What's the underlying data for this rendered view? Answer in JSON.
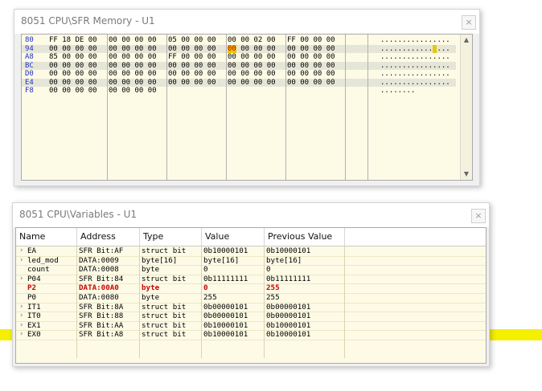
{
  "memory_window": {
    "title": "8051 CPU\\SFR Memory - U1",
    "close": "×",
    "rows": [
      {
        "addr": "80",
        "groups": [
          "FF 18 DE 00",
          "00 00 00 00",
          "05 00 00 00",
          "00 00 02 00",
          "FF 00 00 00"
        ],
        "ascii": "................"
      },
      {
        "addr": "94",
        "groups": [
          "00 00 00 00",
          "00 00 00 00",
          "00 00 00 00",
          "00 00 00 00",
          "00 00 00 00"
        ],
        "ascii": "............ ..."
      },
      {
        "addr": "A8",
        "groups": [
          "85 00 00 00",
          "00 00 00 00",
          "FF 00 00 00",
          "00 00 00 00",
          "00 00 00 00"
        ],
        "ascii": "................"
      },
      {
        "addr": "BC",
        "groups": [
          "00 00 00 00",
          "00 00 00 00",
          "00 00 00 00",
          "00 00 00 00",
          "00 00 00 00"
        ],
        "ascii": "................"
      },
      {
        "addr": "D0",
        "groups": [
          "00 00 00 00",
          "00 00 00 00",
          "00 00 00 00",
          "00 00 00 00",
          "00 00 00 00"
        ],
        "ascii": "................"
      },
      {
        "addr": "E4",
        "groups": [
          "00 00 00 00",
          "00 00 00 00",
          "00 00 00 00",
          "00 00 00 00",
          "00 00 00 00"
        ],
        "ascii": "................"
      },
      {
        "addr": "F8",
        "groups": [
          "00 00 00 00",
          "00 00 00 00",
          "",
          "",
          ""
        ],
        "ascii": "........"
      }
    ],
    "highlight": {
      "row": 1,
      "group": 3,
      "byte": 0,
      "value": "00"
    }
  },
  "variables_window": {
    "title": "8051 CPU\\Variables - U1",
    "close": "×",
    "columns": [
      "Name",
      "Address",
      "Type",
      "Value",
      "Previous Value"
    ],
    "rows": [
      {
        "name": "EA",
        "expand": true,
        "address": "SFR Bit:AF",
        "type": "struct bit",
        "value": "0b10000101",
        "prev": "0b10000101",
        "changed": false
      },
      {
        "name": "led_mod",
        "expand": true,
        "address": "DATA:0009",
        "type": "byte[16]",
        "value": "byte[16]",
        "prev": "byte[16]",
        "changed": false
      },
      {
        "name": "count",
        "expand": false,
        "address": "DATA:0008",
        "type": "byte",
        "value": "0",
        "prev": "0",
        "changed": false
      },
      {
        "name": "P04",
        "expand": true,
        "address": "SFR Bit:84",
        "type": "struct bit",
        "value": "0b11111111",
        "prev": "0b11111111",
        "changed": false
      },
      {
        "name": "P2",
        "expand": false,
        "address": "DATA:00A0",
        "type": "byte",
        "value": "0",
        "prev": "255",
        "changed": true
      },
      {
        "name": "P0",
        "expand": false,
        "address": "DATA:0080",
        "type": "byte",
        "value": "255",
        "prev": "255",
        "changed": false
      },
      {
        "name": "IT1",
        "expand": true,
        "address": "SFR Bit:8A",
        "type": "struct bit",
        "value": "0b00000101",
        "prev": "0b00000101",
        "changed": false
      },
      {
        "name": "IT0",
        "expand": true,
        "address": "SFR Bit:88",
        "type": "struct bit",
        "value": "0b00000101",
        "prev": "0b00000101",
        "changed": false
      },
      {
        "name": "EX1",
        "expand": true,
        "address": "SFR Bit:AA",
        "type": "struct bit",
        "value": "0b10000101",
        "prev": "0b10000101",
        "changed": false
      },
      {
        "name": "EX0",
        "expand": true,
        "address": "SFR Bit:A8",
        "type": "struct bit",
        "value": "0b10000101",
        "prev": "0b10000101",
        "changed": false
      }
    ]
  },
  "colors": {
    "accent_band": "#f5ef00",
    "changed": "#cc0000",
    "address": "#1c2fc8",
    "highlight": "#e8c800"
  }
}
